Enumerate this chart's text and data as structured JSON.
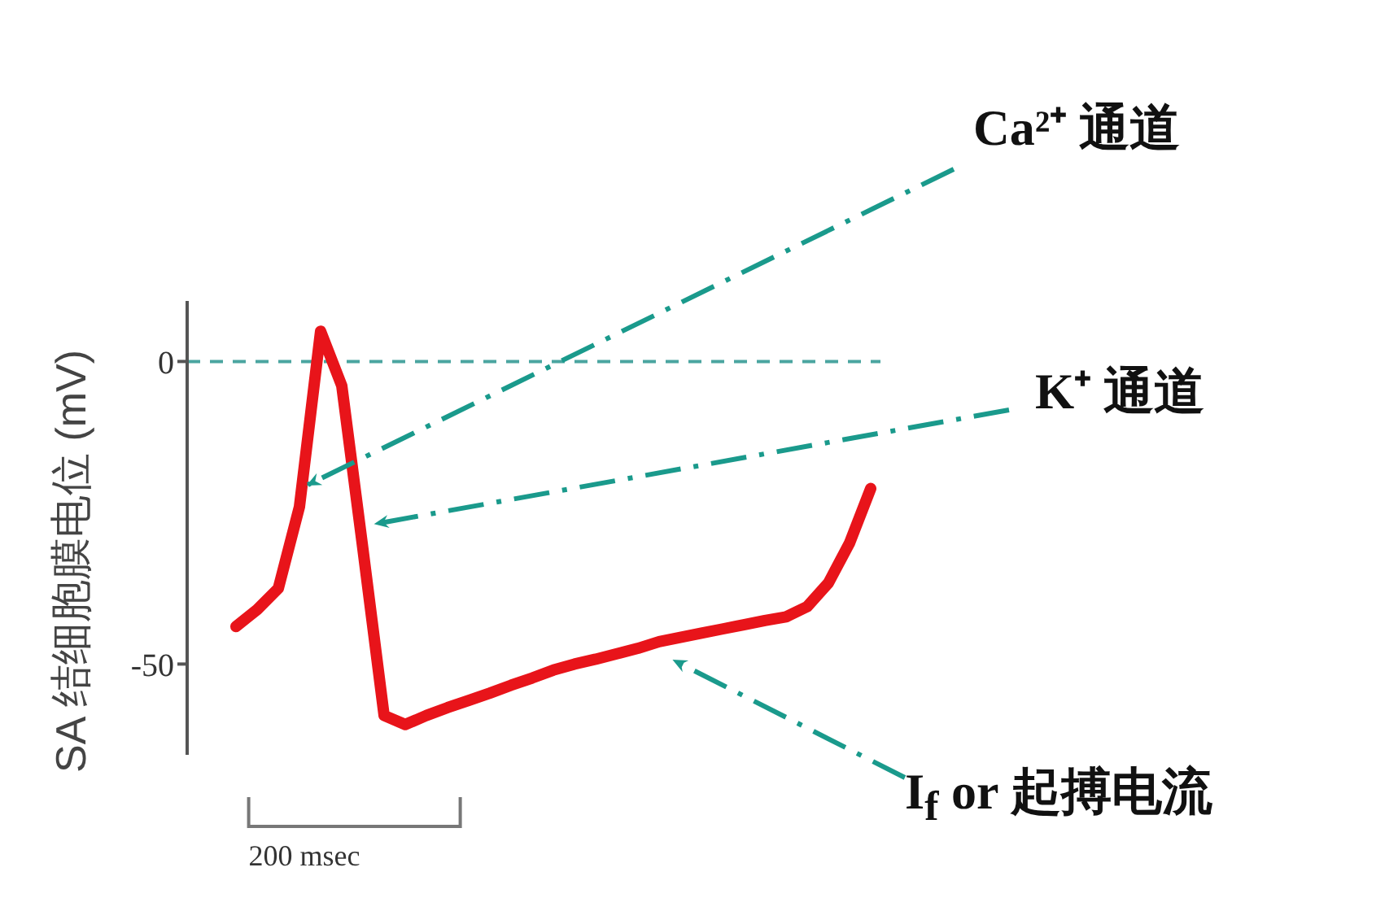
{
  "chart_data": {
    "type": "line",
    "ylabel": "SA 结细胞膜电位 (mV)",
    "categories": [
      null,
      null,
      null,
      null,
      null,
      null,
      null,
      null,
      null,
      null,
      null,
      null,
      null,
      null,
      null,
      null,
      null,
      null,
      null,
      null,
      null,
      null,
      null,
      null,
      null,
      null,
      null,
      null,
      null,
      null,
      null
    ],
    "series": [
      {
        "color": "#e8141a",
        "values": [
          -43.8,
          -41,
          -37.5,
          -24,
          5,
          -4,
          -31,
          -58.5,
          -60,
          -58.5,
          -57.2,
          -56,
          -54.8,
          -53.5,
          -52.3,
          -51,
          -50,
          -49.2,
          -48.3,
          -47.4,
          -46.3,
          -45.6,
          -44.9,
          -44.2,
          -43.5,
          -42.8,
          -42.2,
          -40.5,
          -36.6,
          -30,
          -21
        ]
      }
    ],
    "ylim": [
      -65,
      10
    ],
    "yticks": [
      -50,
      0
    ],
    "tick_labels": "y",
    "grid": false,
    "marker": "none",
    "line_style": "solid",
    "ref_lines": [
      {
        "axis": "y",
        "value": 0,
        "color": "#4aa5a0",
        "line_style": "dashed"
      }
    ],
    "annotations": [
      "Ca²⁺ 通道",
      "K⁺ 通道",
      "I$_{f}$ or 起搏电流",
      "200 msec"
    ]
  }
}
